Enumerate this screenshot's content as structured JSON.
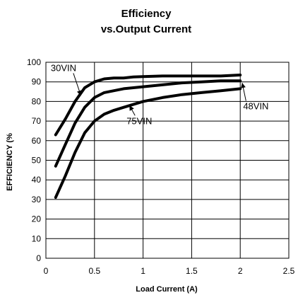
{
  "chart_data": {
    "type": "line",
    "title": "Efficiency",
    "subtitle": "vs.Output Current",
    "xlabel": "Load Current (A)",
    "ylabel": "EFFICIENCY (%",
    "xlim": [
      0,
      2.5
    ],
    "ylim": [
      0,
      100
    ],
    "xticks": [
      "0",
      "0.5",
      "1",
      "1.5",
      "2",
      "2.5"
    ],
    "yticks": [
      "0",
      "10",
      "20",
      "30",
      "40",
      "50",
      "60",
      "70",
      "80",
      "90",
      "100"
    ],
    "grid": true,
    "plot_extent_x": 2.5,
    "series": [
      {
        "name": "30VIN",
        "x": [
          0.1,
          0.2,
          0.3,
          0.4,
          0.5,
          0.6,
          0.7,
          0.8,
          0.9,
          1.0,
          1.2,
          1.4,
          1.6,
          1.8,
          2.0
        ],
        "y": [
          63,
          71,
          80,
          87,
          90,
          91.5,
          92,
          92,
          92.5,
          92.7,
          93,
          93,
          93,
          93,
          93.5
        ]
      },
      {
        "name": "48VIN",
        "x": [
          0.1,
          0.2,
          0.3,
          0.4,
          0.5,
          0.6,
          0.7,
          0.8,
          1.0,
          1.2,
          1.4,
          1.6,
          1.8,
          2.0
        ],
        "y": [
          47,
          58,
          69,
          77,
          82,
          84.5,
          85.5,
          86.5,
          87.5,
          88.5,
          89.5,
          90,
          90.5,
          90.5
        ]
      },
      {
        "name": "75VIN",
        "x": [
          0.1,
          0.2,
          0.3,
          0.4,
          0.5,
          0.6,
          0.7,
          0.8,
          1.0,
          1.2,
          1.4,
          1.6,
          1.8,
          2.0
        ],
        "y": [
          31,
          42,
          54,
          64,
          70,
          73.5,
          75.5,
          77,
          80,
          82,
          83.5,
          84.5,
          85.5,
          86.5
        ]
      }
    ],
    "annotations": [
      {
        "label": "30VIN",
        "text_x": 0.05,
        "text_y": 95.5,
        "arrow_x": 0.36,
        "arrow_y": 83
      },
      {
        "label": "48VIN",
        "text_x": 2.03,
        "text_y": 76,
        "arrow_x": 2.02,
        "arrow_y": 89.5
      },
      {
        "label": "75VIN",
        "text_x": 0.83,
        "text_y": 68.5,
        "arrow_x": 0.86,
        "arrow_y": 78
      }
    ]
  }
}
